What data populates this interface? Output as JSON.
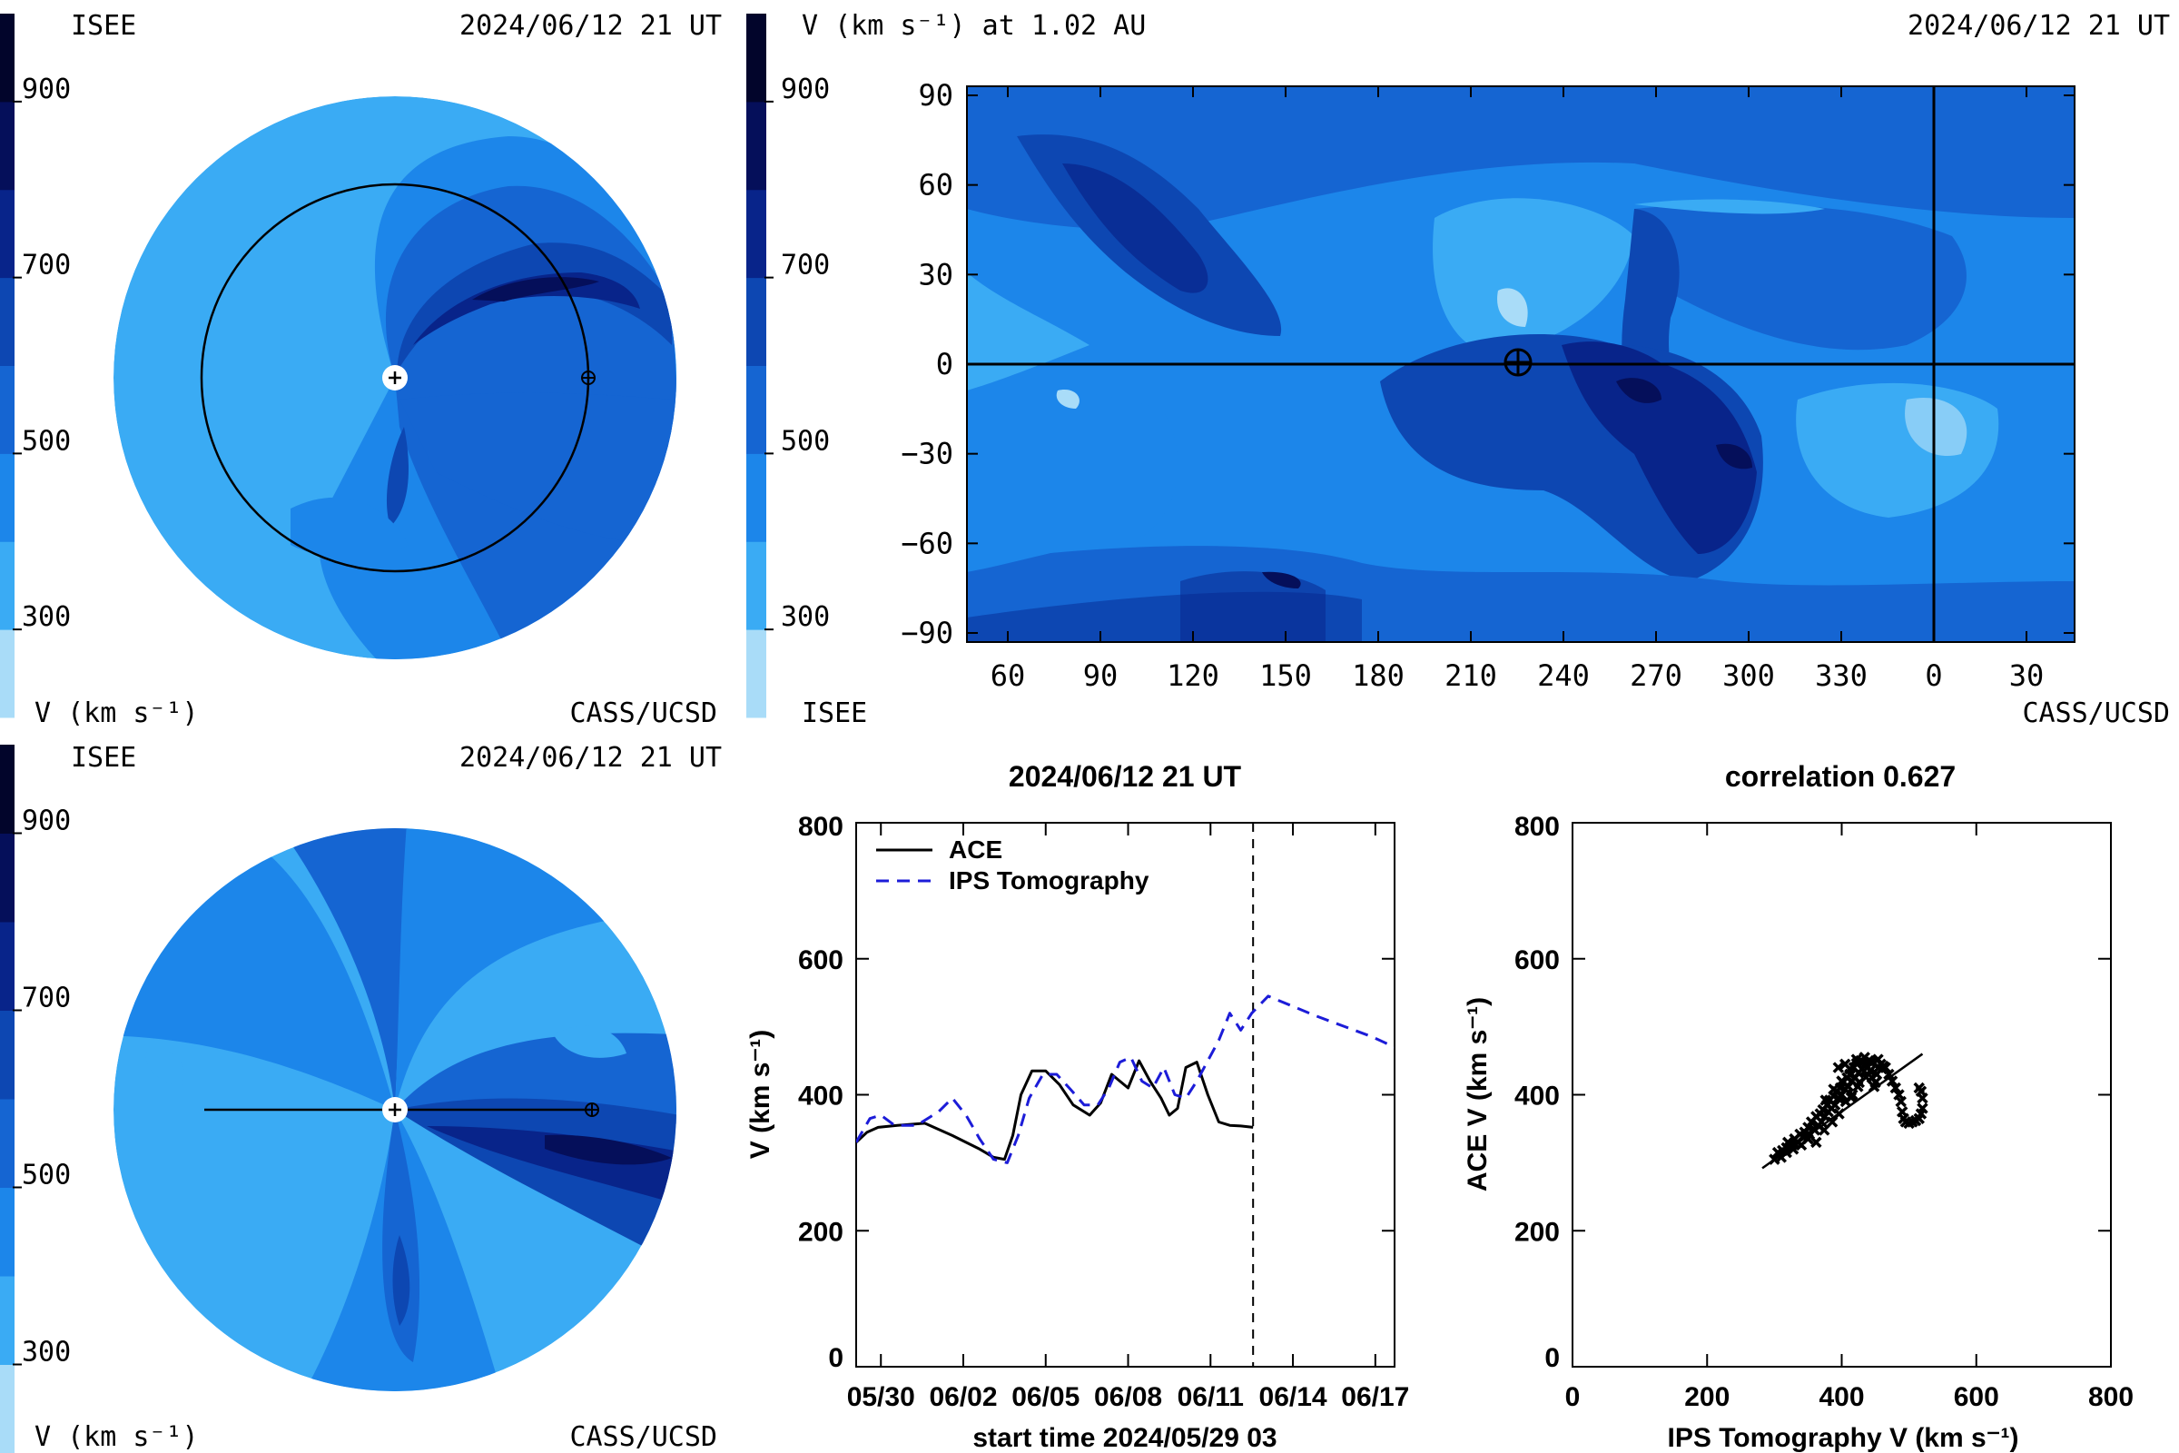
{
  "palette": [
    "#a9dcf8",
    "#3aabf4",
    "#1c86ea",
    "#1565d2",
    "#0d47b2",
    "#08248a",
    "#050f5a",
    "#02052b"
  ],
  "colorbar_ticks": [
    "900",
    "700",
    "500",
    "300"
  ],
  "panels": {
    "ecliptic": {
      "top_left": "ISEE",
      "top_right": "2024/06/12 21 UT",
      "bottom_left": "V (km s⁻¹)",
      "bottom_right": "CASS/UCSD"
    },
    "meridional": {
      "top_left": "ISEE",
      "top_right": "2024/06/12 21 UT",
      "bottom_left": "V (km s⁻¹)",
      "bottom_right": "CASS/UCSD"
    },
    "synoptic": {
      "title": "V (km s⁻¹) at 1.02 AU",
      "top_right": "2024/06/12 21 UT",
      "bottom_left": "ISEE",
      "bottom_right": "CASS/UCSD"
    }
  },
  "synoptic_map": {
    "x_ticks": [
      "60",
      "90",
      "120",
      "150",
      "180",
      "210",
      "240",
      "270",
      "300",
      "330",
      "0",
      "30"
    ],
    "y_ticks": [
      "90",
      "60",
      "30",
      "0",
      "−30",
      "−60",
      "−90"
    ]
  },
  "chart_data": [
    {
      "type": "line",
      "title": "2024/06/12 21 UT",
      "xlabel": "start time 2024/05/29 03",
      "ylabel": "V (km s⁻¹)",
      "x_unit": "days since start",
      "categories": [
        "05/30",
        "06/02",
        "06/05",
        "06/08",
        "06/11",
        "06/14",
        "06/17"
      ],
      "category_x": [
        0.9,
        3.9,
        6.9,
        9.9,
        12.9,
        15.9,
        18.9
      ],
      "xlim": [
        0,
        19.6
      ],
      "ylim": [
        0,
        800
      ],
      "yticks": [
        0,
        200,
        400,
        600,
        800
      ],
      "marker_x": 14.45,
      "series": [
        {
          "name": "ACE",
          "color": "#000000",
          "dash": "none",
          "x": [
            0,
            0.4,
            0.8,
            1.5,
            2.5,
            3.5,
            4.5,
            5.0,
            5.4,
            5.7,
            6.0,
            6.4,
            6.9,
            7.4,
            7.9,
            8.5,
            8.9,
            9.3,
            9.6,
            9.9,
            10.3,
            10.7,
            11.1,
            11.4,
            11.7,
            12.0,
            12.4,
            12.8,
            13.2,
            13.6,
            14.0,
            14.45
          ],
          "values": [
            330,
            345,
            352,
            355,
            358,
            340,
            320,
            308,
            305,
            340,
            400,
            435,
            435,
            415,
            385,
            370,
            388,
            430,
            420,
            410,
            450,
            420,
            395,
            370,
            380,
            440,
            448,
            400,
            360,
            355,
            354,
            352
          ]
        },
        {
          "name": "IPS Tomography",
          "color": "#1c1cd8",
          "dash": "14,9",
          "x": [
            0,
            0.5,
            0.9,
            1.4,
            2.2,
            3.0,
            3.5,
            4.0,
            4.5,
            5.0,
            5.5,
            5.9,
            6.3,
            6.8,
            7.3,
            7.8,
            8.3,
            8.8,
            9.2,
            9.6,
            10.0,
            10.4,
            10.8,
            11.2,
            11.6,
            12.0,
            12.4,
            12.8,
            13.2,
            13.6,
            14.0,
            14.4,
            15.0,
            15.9,
            16.8,
            17.8,
            18.8,
            19.6
          ],
          "values": [
            330,
            365,
            370,
            355,
            355,
            375,
            395,
            370,
            335,
            305,
            300,
            340,
            395,
            430,
            430,
            408,
            385,
            385,
            410,
            448,
            455,
            420,
            410,
            440,
            400,
            395,
            420,
            450,
            480,
            520,
            495,
            520,
            545,
            530,
            515,
            500,
            485,
            470
          ]
        }
      ]
    },
    {
      "type": "scatter",
      "title": "correlation 0.627",
      "xlabel": "IPS Tomography V (km s⁻¹)",
      "ylabel": "ACE V (km s⁻¹)",
      "xlim": [
        0,
        800
      ],
      "ylim": [
        0,
        800
      ],
      "xticks": [
        0,
        200,
        400,
        600,
        800
      ],
      "yticks": [
        0,
        200,
        400,
        600,
        800
      ],
      "fit_line": {
        "x": [
          282,
          520
        ],
        "y": [
          292,
          460
        ]
      },
      "points": [
        [
          300,
          305
        ],
        [
          305,
          315
        ],
        [
          312,
          318
        ],
        [
          318,
          322
        ],
        [
          320,
          330
        ],
        [
          325,
          325
        ],
        [
          330,
          335
        ],
        [
          335,
          330
        ],
        [
          338,
          342
        ],
        [
          342,
          338
        ],
        [
          345,
          345
        ],
        [
          350,
          352
        ],
        [
          352,
          342
        ],
        [
          355,
          360
        ],
        [
          358,
          350
        ],
        [
          360,
          348
        ],
        [
          362,
          368
        ],
        [
          365,
          355
        ],
        [
          368,
          372
        ],
        [
          370,
          360
        ],
        [
          372,
          378
        ],
        [
          375,
          368
        ],
        [
          378,
          385
        ],
        [
          380,
          375
        ],
        [
          382,
          392
        ],
        [
          385,
          380
        ],
        [
          388,
          398
        ],
        [
          390,
          385
        ],
        [
          392,
          405
        ],
        [
          395,
          395
        ],
        [
          398,
          410
        ],
        [
          400,
          400
        ],
        [
          402,
          418
        ],
        [
          405,
          408
        ],
        [
          408,
          425
        ],
        [
          410,
          412
        ],
        [
          412,
          430
        ],
        [
          415,
          420
        ],
        [
          418,
          440
        ],
        [
          420,
          425
        ],
        [
          422,
          446
        ],
        [
          425,
          432
        ],
        [
          428,
          450
        ],
        [
          430,
          438
        ],
        [
          432,
          448
        ],
        [
          435,
          445
        ],
        [
          438,
          440
        ],
        [
          440,
          450
        ],
        [
          442,
          435
        ],
        [
          445,
          425
        ],
        [
          448,
          412
        ],
        [
          450,
          418
        ],
        [
          452,
          430
        ],
        [
          455,
          440
        ],
        [
          458,
          445
        ],
        [
          460,
          438
        ],
        [
          462,
          442
        ],
        [
          465,
          440
        ],
        [
          470,
          430
        ],
        [
          475,
          420
        ],
        [
          480,
          410
        ],
        [
          485,
          400
        ],
        [
          488,
          390
        ],
        [
          490,
          375
        ],
        [
          492,
          365
        ],
        [
          495,
          360
        ],
        [
          500,
          358
        ],
        [
          505,
          360
        ],
        [
          510,
          362
        ],
        [
          515,
          365
        ],
        [
          518,
          372
        ],
        [
          520,
          380
        ],
        [
          520,
          395
        ],
        [
          518,
          405
        ],
        [
          515,
          410
        ],
        [
          350,
          335
        ],
        [
          362,
          330
        ],
        [
          374,
          348
        ],
        [
          386,
          360
        ],
        [
          396,
          372
        ],
        [
          406,
          390
        ],
        [
          416,
          400
        ],
        [
          426,
          418
        ],
        [
          318,
          315
        ],
        [
          328,
          320
        ],
        [
          340,
          326
        ],
        [
          395,
          440
        ],
        [
          405,
          445
        ],
        [
          412,
          438
        ],
        [
          422,
          452
        ],
        [
          434,
          455
        ],
        [
          444,
          448
        ],
        [
          310,
          308
        ],
        [
          376,
          392
        ],
        [
          388,
          408
        ],
        [
          400,
          420
        ],
        [
          414,
          396
        ],
        [
          424,
          412
        ],
        [
          436,
          426
        ],
        [
          454,
          452
        ]
      ]
    }
  ]
}
